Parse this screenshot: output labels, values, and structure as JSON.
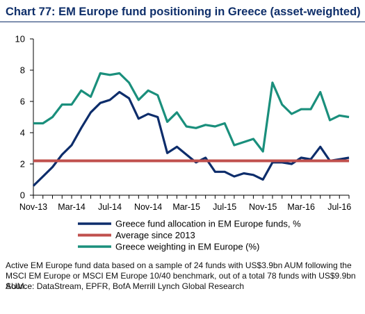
{
  "title": "Chart 77: EM Europe fund positioning in Greece (asset-weighted)",
  "footnote": "Active EM Europe fund data based on a sample of 24 funds with US$3.9bn AUM following the MSCI EM Europe or MSCI EM Europe 10/40 benchmark, out of a total 78 funds with US$9.9bn AUM.",
  "source": "Source: DataStream, EPFR, BofA Merrill Lynch Global Research",
  "colors": {
    "allocation": "#0d2d6b",
    "average": "#c0504d",
    "weighting": "#1a8f7c",
    "title": "#0f2f6a",
    "axis": "#000000"
  },
  "chart_data": {
    "type": "line",
    "grid": false,
    "legend_position": "bottom-center",
    "xlim": [
      0,
      33
    ],
    "ylim": [
      0,
      10
    ],
    "yticks": [
      0,
      2,
      4,
      6,
      8,
      10
    ],
    "xtick_labels": [
      {
        "x": 0,
        "label": "Nov-13"
      },
      {
        "x": 4,
        "label": "Mar-14"
      },
      {
        "x": 8,
        "label": "Jul-14"
      },
      {
        "x": 12,
        "label": "Nov-14"
      },
      {
        "x": 16,
        "label": "Mar-15"
      },
      {
        "x": 20,
        "label": "Jul-15"
      },
      {
        "x": 24,
        "label": "Nov-15"
      },
      {
        "x": 28,
        "label": "Mar-16"
      },
      {
        "x": 32,
        "label": "Jul-16"
      }
    ],
    "series": [
      {
        "name": "Greece fund allocation in EM Europe funds, %",
        "color": "#0d2d6b",
        "values": [
          0.6,
          1.2,
          1.8,
          2.6,
          3.2,
          4.3,
          5.3,
          5.9,
          6.1,
          6.6,
          6.2,
          4.9,
          5.2,
          5.0,
          2.7,
          3.1,
          2.6,
          2.1,
          2.4,
          1.5,
          1.5,
          1.2,
          1.4,
          1.3,
          1.0,
          2.1,
          2.1,
          2.0,
          2.4,
          2.3,
          3.1,
          2.2,
          2.3,
          2.4
        ]
      },
      {
        "name": "Average since  2013",
        "color": "#c0504d",
        "values": [
          2.2,
          2.2,
          2.2,
          2.2,
          2.2,
          2.2,
          2.2,
          2.2,
          2.2,
          2.2,
          2.2,
          2.2,
          2.2,
          2.2,
          2.2,
          2.2,
          2.2,
          2.2,
          2.2,
          2.2,
          2.2,
          2.2,
          2.2,
          2.2,
          2.2,
          2.2,
          2.2,
          2.2,
          2.2,
          2.2,
          2.2,
          2.2,
          2.2,
          2.2
        ]
      },
      {
        "name": "Greece weighting in EM Europe (%)",
        "color": "#1a8f7c",
        "values": [
          4.6,
          4.6,
          5.0,
          5.8,
          5.8,
          6.7,
          6.3,
          7.8,
          7.7,
          7.8,
          7.2,
          6.1,
          6.7,
          6.4,
          4.7,
          5.3,
          4.4,
          4.3,
          4.5,
          4.4,
          4.6,
          3.2,
          3.4,
          3.6,
          2.8,
          7.2,
          5.8,
          5.2,
          5.5,
          5.5,
          6.6,
          4.8,
          5.1,
          5.0
        ]
      }
    ]
  }
}
